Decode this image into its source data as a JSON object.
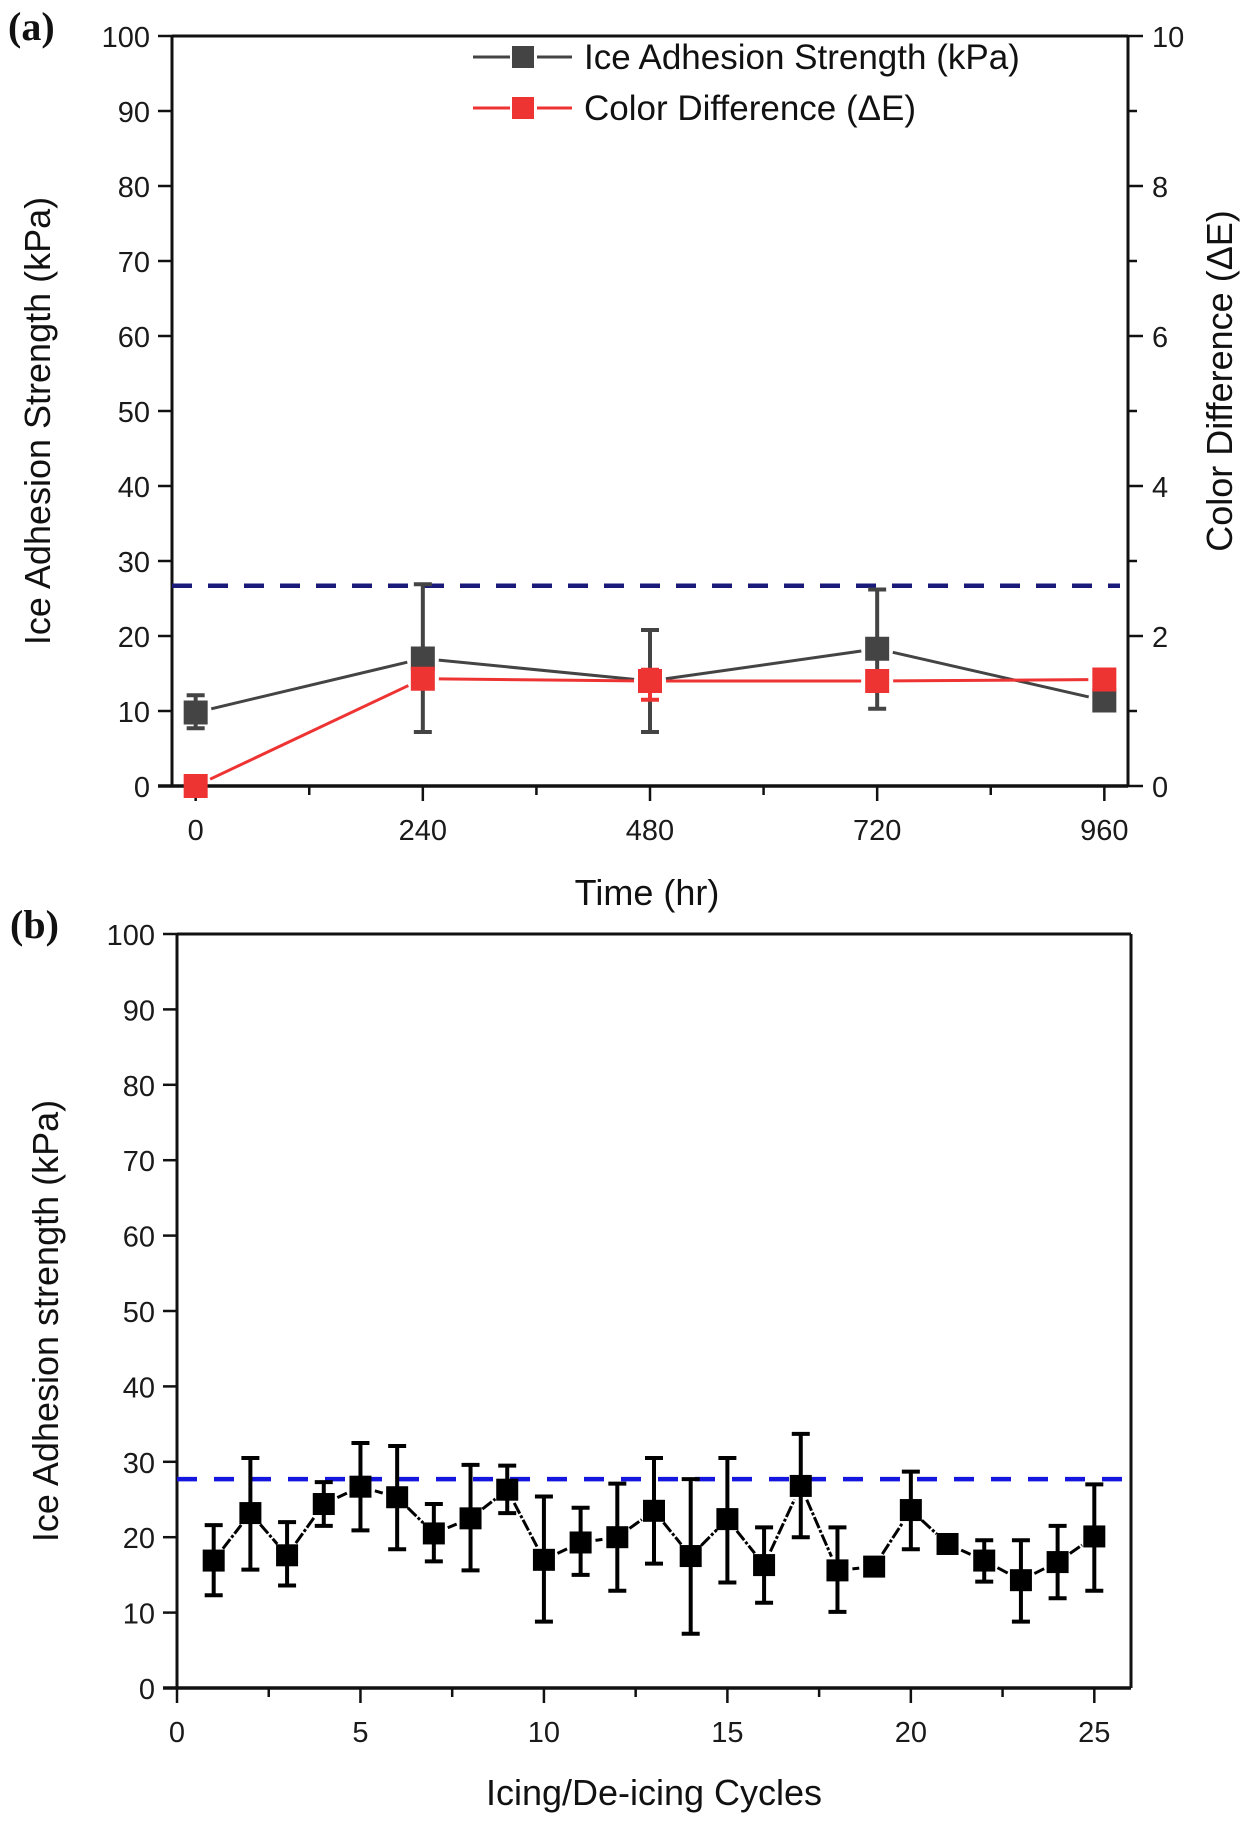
{
  "chart_data": [
    {
      "panel_label": "(a)",
      "type": "line",
      "title": "",
      "xlabel": "Time (hr)",
      "ylabel": "Ice Adhesion Strength (kPa)",
      "y2label": "Color Difference (ΔE)",
      "xlim": [
        -25,
        985
      ],
      "ylim": [
        0,
        100
      ],
      "y2lim": [
        0,
        10
      ],
      "x_ticks": [
        0,
        240,
        480,
        720,
        960
      ],
      "x_minor_ticks": [
        120,
        360,
        600,
        840
      ],
      "y_ticks": [
        0,
        10,
        20,
        30,
        40,
        50,
        60,
        70,
        80,
        90,
        100
      ],
      "y2_ticks": [
        0,
        2,
        4,
        6,
        8,
        10
      ],
      "y2_minor_ticks": [
        1,
        3,
        5,
        7,
        9
      ],
      "grid": false,
      "legend_position": "top-right",
      "threshold_line": {
        "y": 26.7,
        "style": "dashed",
        "color": "#1a1a7a"
      },
      "x": [
        0,
        240,
        480,
        720,
        960
      ],
      "series": [
        {
          "name": "Ice Adhesion Strength (kPa)",
          "axis": "left",
          "color": "#444444",
          "values": [
            9.8,
            17.0,
            14.0,
            18.3,
            11.4
          ],
          "error_low": [
            7.7,
            7.2,
            7.2,
            10.3,
            10.5
          ],
          "error_high": [
            12.1,
            26.9,
            20.8,
            26.2,
            12.3
          ]
        },
        {
          "name": "Color Difference (ΔE)",
          "axis": "right",
          "color": "#ee3333",
          "values": [
            0.0,
            1.43,
            1.4,
            1.4,
            1.42
          ],
          "error_low": [
            0.0,
            1.3,
            1.15,
            1.3,
            1.32
          ],
          "error_high": [
            0.0,
            1.55,
            1.55,
            1.5,
            1.5
          ]
        }
      ]
    },
    {
      "panel_label": "(b)",
      "type": "line",
      "title": "",
      "xlabel": "Icing/De-icing Cycles",
      "ylabel": "Ice Adhesion strength (kPa)",
      "xlim": [
        0,
        26
      ],
      "ylim": [
        0,
        100
      ],
      "x_ticks": [
        0,
        5,
        10,
        15,
        20,
        25
      ],
      "x_minor_ticks": [
        2.5,
        7.5,
        12.5,
        17.5,
        22.5
      ],
      "y_ticks": [
        0,
        10,
        20,
        30,
        40,
        50,
        60,
        70,
        80,
        90,
        100
      ],
      "grid": false,
      "threshold_line": {
        "y": 27.7,
        "style": "dashed",
        "color": "#1515e0"
      },
      "x": [
        1,
        2,
        3,
        4,
        5,
        6,
        7,
        8,
        9,
        10,
        11,
        12,
        13,
        14,
        15,
        16,
        17,
        18,
        19,
        20,
        21,
        22,
        23,
        24,
        25
      ],
      "series": [
        {
          "name": "Ice Adhesion strength",
          "color": "#000000",
          "values": [
            16.9,
            23.2,
            17.6,
            24.4,
            26.7,
            25.3,
            20.5,
            22.5,
            26.3,
            17.0,
            19.3,
            20.0,
            23.5,
            17.5,
            22.4,
            16.3,
            26.8,
            15.6,
            16.1,
            23.6,
            19.1,
            16.9,
            14.3,
            16.7,
            20.1
          ],
          "error_low": [
            12.3,
            15.7,
            13.6,
            21.5,
            20.9,
            18.4,
            16.8,
            15.6,
            23.2,
            8.8,
            15.0,
            12.9,
            16.5,
            7.2,
            14.0,
            11.3,
            20.0,
            10.1,
            15.6,
            18.4,
            18.6,
            14.1,
            8.8,
            11.9,
            12.9
          ],
          "error_high": [
            21.6,
            30.5,
            22.0,
            27.3,
            32.5,
            32.1,
            24.4,
            29.6,
            29.5,
            25.4,
            23.9,
            27.1,
            30.5,
            27.7,
            30.5,
            21.3,
            33.7,
            21.3,
            16.6,
            28.7,
            19.6,
            19.6,
            19.6,
            21.5,
            27.0
          ]
        }
      ]
    }
  ]
}
